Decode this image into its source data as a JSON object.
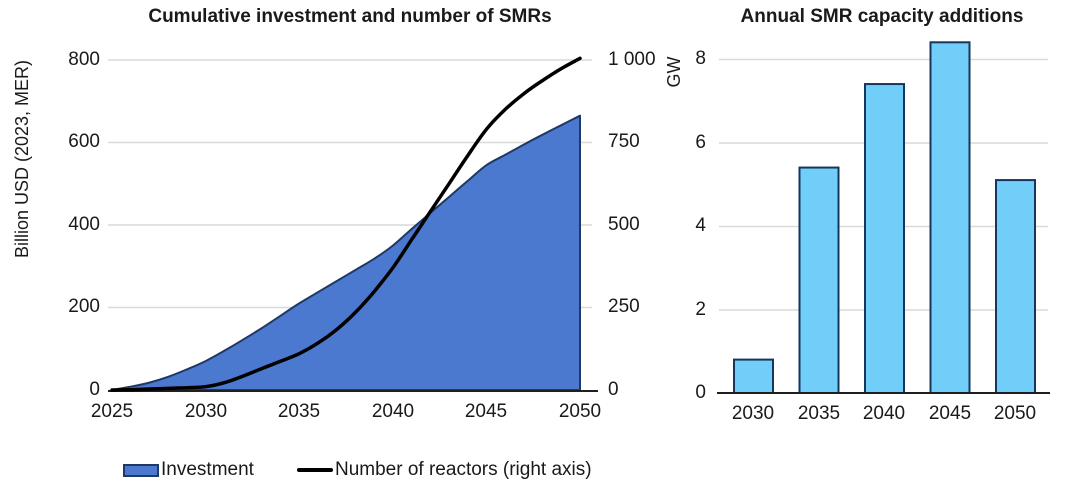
{
  "colors": {
    "background": "#ffffff",
    "gridline": "#d9d9d9",
    "axis": "#1f1f1f",
    "text": "#1a1a1a",
    "investment_fill": "#4c79d0",
    "investment_stroke": "#1f3864",
    "reactors_line": "#000000",
    "bar_fill": "#70cef8",
    "bar_stroke": "#16365c"
  },
  "chart_data": [
    {
      "type": "area",
      "title": "Cumulative investment and number of SMRs",
      "ylabel_left": "Billion USD (2023, MER)",
      "x_tick_labels": [
        "2025",
        "2030",
        "2035",
        "2040",
        "2045",
        "2050"
      ],
      "y_left": {
        "range": [
          0,
          800
        ],
        "tick_labels": [
          "800",
          "600",
          "400",
          "200",
          "0"
        ]
      },
      "y_right": {
        "range": [
          0,
          1000
        ],
        "tick_labels": [
          "1 000",
          "750",
          "500",
          "250",
          "0"
        ]
      },
      "grid": true,
      "series": [
        {
          "name": "Investment",
          "type": "area",
          "axis": "left",
          "x": [
            2025,
            2026,
            2027,
            2028,
            2029,
            2030,
            2031,
            2032,
            2033,
            2034,
            2035,
            2036,
            2037,
            2038,
            2039,
            2040,
            2041,
            2042,
            2043,
            2044,
            2045,
            2046,
            2047,
            2048,
            2049,
            2050
          ],
          "values": [
            0,
            8,
            18,
            32,
            50,
            70,
            95,
            122,
            150,
            180,
            210,
            237,
            264,
            291,
            318,
            350,
            390,
            429,
            468,
            507,
            545,
            570,
            595,
            619,
            642,
            665
          ]
        },
        {
          "name": "Number of reactors (right axis)",
          "type": "line",
          "axis": "right",
          "x": [
            2025,
            2026,
            2027,
            2028,
            2029,
            2030,
            2031,
            2032,
            2033,
            2034,
            2035,
            2036,
            2037,
            2038,
            2039,
            2040,
            2041,
            2042,
            2043,
            2044,
            2045,
            2046,
            2047,
            2048,
            2049,
            2050
          ],
          "values": [
            0,
            1,
            3,
            5,
            7,
            10,
            22,
            42,
            65,
            87,
            110,
            142,
            183,
            235,
            298,
            370,
            455,
            540,
            625,
            710,
            790,
            850,
            898,
            938,
            974,
            1005
          ]
        }
      ],
      "five_year_values": {
        "years": [
          "2025",
          "2030",
          "2035",
          "2040",
          "2045",
          "2050"
        ],
        "investment_billion_usd": [
          0,
          70,
          210,
          350,
          545,
          665
        ],
        "number_of_reactors": [
          0,
          10,
          110,
          370,
          790,
          1005
        ]
      }
    },
    {
      "type": "bar",
      "title": "Annual SMR capacity additions",
      "ylabel": "GW",
      "categories": [
        "2030",
        "2035",
        "2040",
        "2045",
        "2050"
      ],
      "values": [
        0.8,
        5.4,
        7.4,
        8.4,
        5.1
      ],
      "y_tick_labels": [
        "8",
        "6",
        "4",
        "2",
        "0"
      ],
      "ylim": [
        0,
        9
      ],
      "grid": true
    }
  ],
  "legend": {
    "items": [
      {
        "label": "Investment",
        "swatch": "area-swatch"
      },
      {
        "label": "Number of reactors (right axis)",
        "swatch": "line-swatch"
      }
    ]
  }
}
